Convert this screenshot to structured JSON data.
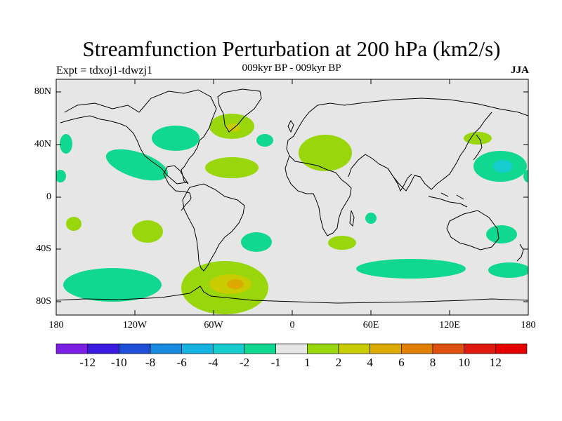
{
  "header": {
    "title": "Streamfunction Perturbation at 200 hPa (km2/s)",
    "subtitle": "009kyr BP - 009kyr BP",
    "experiment": "Expt = tdxoj1-tdwzj1",
    "season": "JJA"
  },
  "axes": {
    "lat_labels": [
      "80N",
      "40N",
      "0",
      "40S",
      "80S"
    ],
    "lon_labels": [
      "180",
      "120W",
      "60W",
      "0",
      "60E",
      "120E",
      "180"
    ]
  },
  "colorbar": {
    "labels": [
      "-12",
      "-10",
      "-8",
      "-6",
      "-4",
      "-2",
      "-1",
      "1",
      "2",
      "4",
      "6",
      "8",
      "10",
      "12"
    ],
    "colors": [
      "#7b1fe6",
      "#3a1ae0",
      "#1f4fd6",
      "#1a8ae0",
      "#14b2e0",
      "#16cccc",
      "#10d890",
      "#e6e6e6",
      "#99d60c",
      "#c8cc00",
      "#dcaa00",
      "#e08000",
      "#e05010",
      "#e01a10",
      "#e60000"
    ]
  },
  "map": {
    "background": "#e6e6e6",
    "anomalies": [
      {
        "lon": 157,
        "lat": 23,
        "value": -2.5
      },
      {
        "lon": 162,
        "lat": 25,
        "value": -3.5
      },
      {
        "lon": -82,
        "lat": 44,
        "value": -1.5
      },
      {
        "lon": -130,
        "lat": 25,
        "value": -1.5
      },
      {
        "lon": -155,
        "lat": -70,
        "value": -1.5
      },
      {
        "lon": -25,
        "lat": -37,
        "value": -1.5
      },
      {
        "lon": 65,
        "lat": -57,
        "value": -1.5
      },
      {
        "lon": 165,
        "lat": -56,
        "value": -1.5
      },
      {
        "lon": 150,
        "lat": -29,
        "value": -1.5
      },
      {
        "lon": 75,
        "lat": -15,
        "value": -1.5
      },
      {
        "lon": -20,
        "lat": 40,
        "value": -1.5
      },
      {
        "lon": -178,
        "lat": 39,
        "value": -1.5
      },
      {
        "lon": -178,
        "lat": 15,
        "value": -1.5
      },
      {
        "lon": 178,
        "lat": 15,
        "value": -1.5
      },
      {
        "lon": -55,
        "lat": -68,
        "value": 1.5
      },
      {
        "lon": -50,
        "lat": -70,
        "value": 2.8
      },
      {
        "lon": -48,
        "lat": -68,
        "value": 3.5
      },
      {
        "lon": -45,
        "lat": 54,
        "value": 1.5
      },
      {
        "lon": -44,
        "lat": 53,
        "value": 2.5
      },
      {
        "lon": 30,
        "lat": 38,
        "value": 1.5
      },
      {
        "lon": -45,
        "lat": 22,
        "value": 1.5
      },
      {
        "lon": -105,
        "lat": -26,
        "value": 1.5
      },
      {
        "lon": 40,
        "lat": -35,
        "value": 1.5
      },
      {
        "lon": 150,
        "lat": 45,
        "value": 1.5
      },
      {
        "lon": -165,
        "lat": -20,
        "value": 1.5
      }
    ]
  }
}
